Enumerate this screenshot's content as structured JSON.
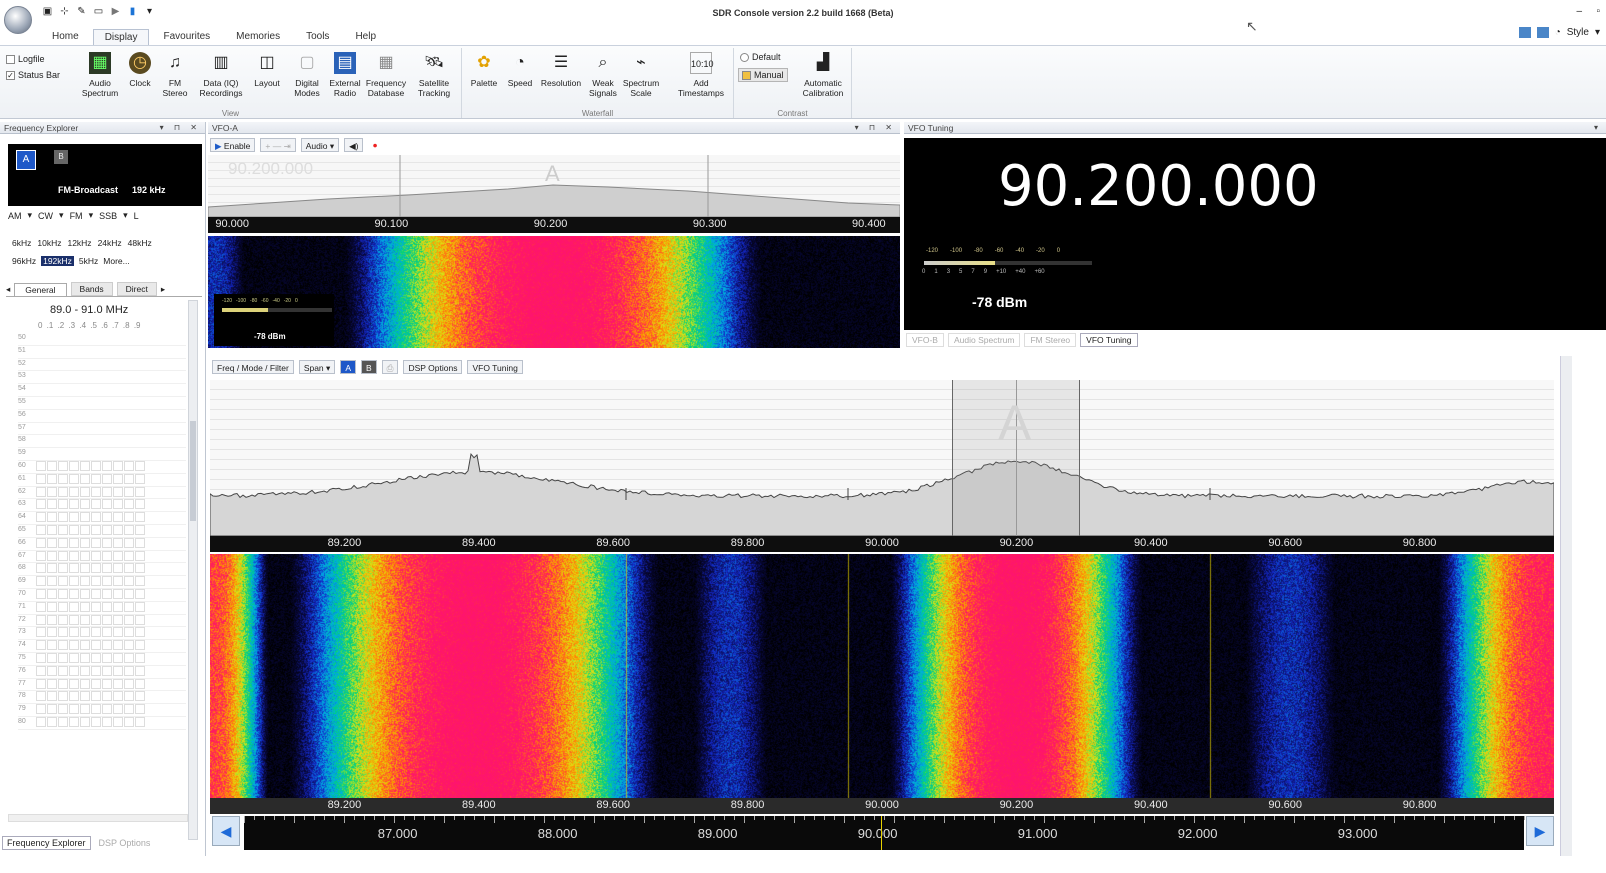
{
  "window": {
    "title": "SDR Console version 2.2 build 1668 (Beta)"
  },
  "quick_access": {
    "icons": [
      "camera-icon",
      "sliders-icon",
      "pen-icon",
      "screen-icon",
      "play-icon",
      "blue-square-icon",
      "dropdown-icon"
    ]
  },
  "tabs": [
    "Home",
    "Display",
    "Favourites",
    "Memories",
    "Tools",
    "Help"
  ],
  "active_tab": "Display",
  "top_right": {
    "style_label": "Style"
  },
  "ribbon": {
    "checkboxes": [
      {
        "label": "Logfile",
        "checked": false
      },
      {
        "label": "Status Bar",
        "checked": true
      }
    ],
    "view_buttons": [
      "Audio\nSpectrum",
      "Clock",
      "FM\nStereo",
      "Data (IQ)\nRecordings",
      "Layout",
      "Digital\nModes",
      "External\nRadio",
      "Frequency\nDatabase",
      "Satellite\nTracking"
    ],
    "view_label": "View",
    "waterfall_buttons": [
      "Palette",
      "Speed",
      "Resolution",
      "Weak\nSignals",
      "Spectrum\nScale",
      "Add\nTimestamps"
    ],
    "waterfall_label": "Waterfall",
    "contrast_options": [
      "Default",
      "Manual"
    ],
    "contrast_button": "Automatic\nCalibration",
    "contrast_label": "Contrast"
  },
  "freq_explorer": {
    "title": "Frequency Explorer",
    "band_name": "FM-Broadcast",
    "band_bw": "192 kHz",
    "modes": [
      "AM",
      "CW",
      "FM",
      "SSB",
      "L"
    ],
    "bandwidths_row1": [
      "6kHz",
      "10kHz",
      "12kHz",
      "24kHz",
      "48kHz"
    ],
    "bandwidths_row2": [
      "96kHz",
      "192kHz",
      "5kHz",
      "More..."
    ],
    "selected_bw": "192kHz",
    "subtabs": [
      "General",
      "Bands",
      "Direct"
    ],
    "range": "89.0 - 91.0 MHz",
    "digits": "0 .1 .2 .3 .4 .5 .6 .7 .8 .9",
    "rows": [
      "50",
      "51",
      "52",
      "53",
      "54",
      "55",
      "56",
      "57",
      "58",
      "59",
      "60",
      "61",
      "62",
      "63",
      "64",
      "65",
      "66",
      "67",
      "68",
      "69",
      "70",
      "71",
      "72",
      "73",
      "74",
      "75",
      "76",
      "77",
      "78",
      "79",
      "80"
    ],
    "bottom_tabs": [
      "Frequency Explorer",
      "DSP Options"
    ]
  },
  "vfo_a": {
    "title": "VFO-A",
    "enable_label": "Enable",
    "audio_label": "Audio",
    "ghost_freq": "90.200.000",
    "marker": "A",
    "scale_labels": [
      "90.000",
      "90.100",
      "90.200",
      "90.300",
      "90.400"
    ],
    "smeter_ticks": [
      "-120",
      "-100",
      "-80",
      "-60",
      "-40",
      "-20",
      "0"
    ],
    "smeter_reading": "-78 dBm"
  },
  "vfo_tuning": {
    "title": "VFO Tuning",
    "frequency": "90.200.000",
    "smeter_top": [
      "-120",
      "-100",
      "-80",
      "-60",
      "-40",
      "-20",
      "0"
    ],
    "smeter_bottom": [
      "0",
      "1",
      "3",
      "5",
      "7",
      "9",
      "+10",
      "+40",
      "+60"
    ],
    "level": "-78 dBm",
    "level_fraction": 0.42,
    "tabs": [
      "VFO-B",
      "Audio Spectrum",
      "FM Stereo",
      "VFO Tuning"
    ],
    "active_tab": "VFO Tuning"
  },
  "main_toolbar": {
    "items": [
      "Freq / Mode / Filter",
      "Span",
      "DSP Options",
      "VFO Tuning"
    ]
  },
  "spectrum": {
    "marker": "A",
    "scale_labels": [
      "89.200",
      "89.400",
      "89.600",
      "89.800",
      "90.000",
      "90.200",
      "90.400",
      "90.600",
      "90.800"
    ]
  },
  "waterfall": {
    "scale_labels": [
      "89.200",
      "89.400",
      "89.600",
      "89.800",
      "90.000",
      "90.200",
      "90.400",
      "90.600",
      "90.800"
    ]
  },
  "band_scale": {
    "labels": [
      "87.000",
      "88.000",
      "89.000",
      "90.000",
      "91.000",
      "92.000",
      "93.000"
    ]
  }
}
